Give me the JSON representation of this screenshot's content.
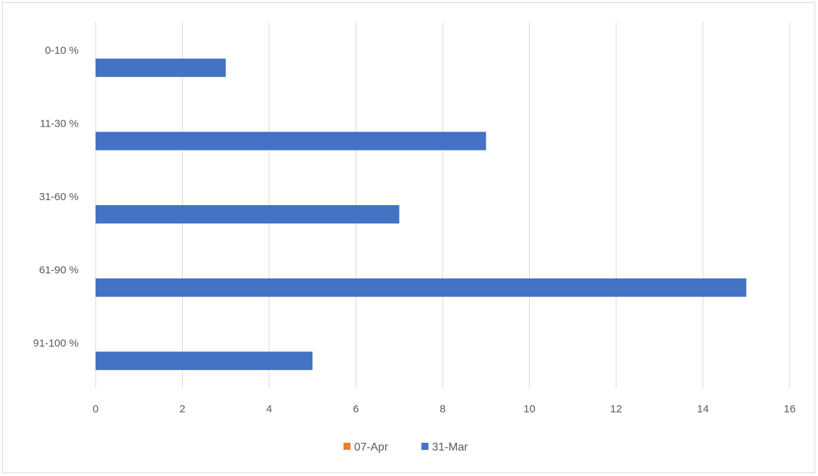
{
  "chart_data": {
    "type": "bar",
    "orientation": "horizontal",
    "categories": [
      "0-10 %",
      "11-30 %",
      "31-60 %",
      "61-90 %",
      "91-100 %"
    ],
    "series": [
      {
        "name": "07-Apr",
        "color": "#ed7d31",
        "values": [
          0,
          0,
          0,
          0,
          0
        ]
      },
      {
        "name": "31-Mar",
        "color": "#4472c4",
        "values": [
          3,
          9,
          7,
          15,
          5
        ]
      }
    ],
    "xlim": [
      0,
      16
    ],
    "x_ticks": [
      0,
      2,
      4,
      6,
      8,
      10,
      12,
      14,
      16
    ],
    "grid": true,
    "legend_position": "bottom",
    "title": "",
    "xlabel": "",
    "ylabel": ""
  }
}
